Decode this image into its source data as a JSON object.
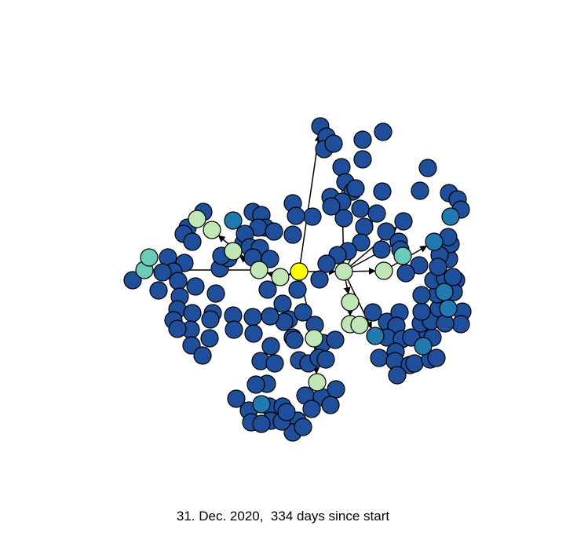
{
  "caption": "31. Dec. 2020,  334 days since start",
  "colors": {
    "edge": "#000000",
    "node_stroke": "#000000",
    "palette": {
      "dark_blue": "#1f4e9a",
      "blue": "#2179b0",
      "teal": "#6ccab8",
      "light_green": "#c1e6b5",
      "yellow": "#ffff00"
    }
  },
  "graph": {
    "root_color": "yellow",
    "legend_text": "",
    "node_count": 187
  }
}
